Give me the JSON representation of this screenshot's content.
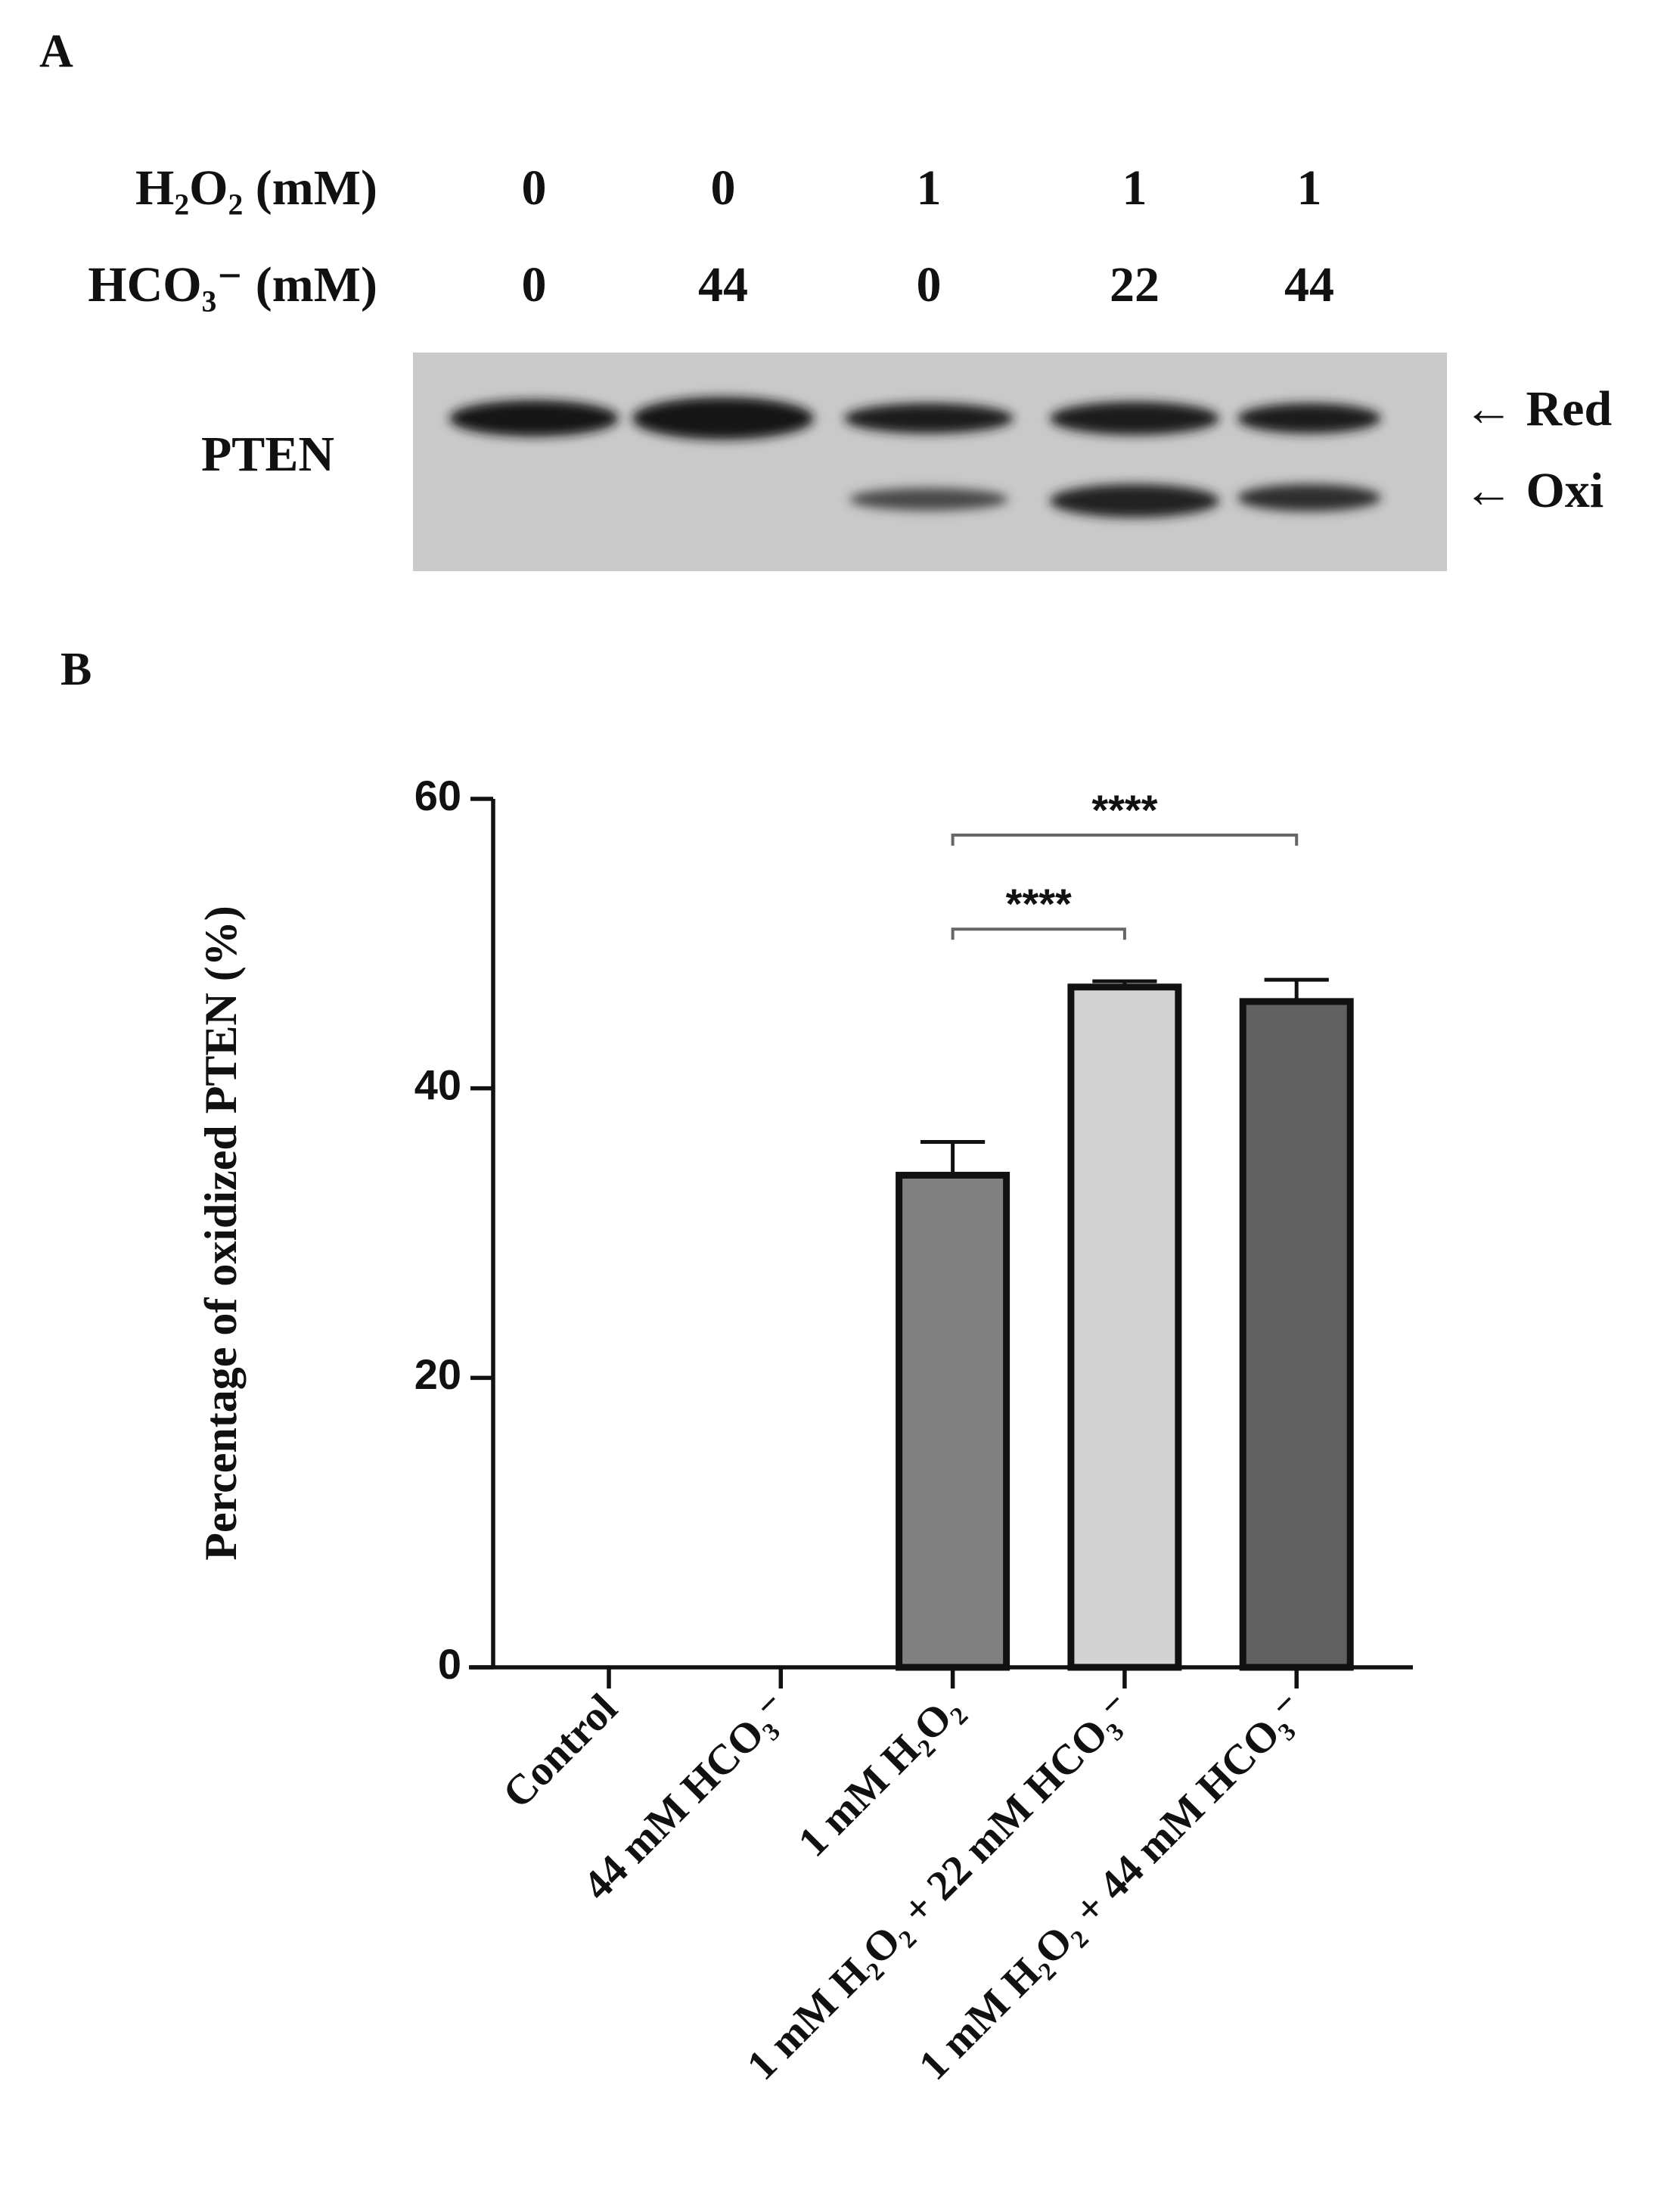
{
  "panel_a": {
    "label": "A",
    "rows": [
      {
        "label": "H₂O₂ (mM)",
        "values": [
          0,
          0,
          1,
          1,
          1
        ]
      },
      {
        "label": "HCO₃⁻ (mM)",
        "values": [
          0,
          44,
          0,
          22,
          44
        ]
      }
    ],
    "protein": "PTEN",
    "bands": [
      "← Red",
      "← Oxi"
    ]
  },
  "panel_b": {
    "label": "B"
  },
  "chart_data": {
    "type": "bar",
    "ylabel": "Percentage of oxidized PTEN (%)",
    "categories": [
      "Control",
      "44 mM HCO₃⁻",
      "1 mM H₂O₂",
      "1 mM H₂O₂ + 22 mM HCO₃⁻",
      "1 mM H₂O₂ + 44 mM HCO₃⁻"
    ],
    "values": [
      0,
      0,
      34,
      47,
      46
    ],
    "errors": [
      null,
      null,
      2.3,
      0.4,
      1.5
    ],
    "colors": [
      "#808080",
      "#808080",
      "#808080",
      "#d3d3d3",
      "#606060"
    ],
    "ylim": [
      0,
      60
    ],
    "yticks": [
      0,
      20,
      40,
      60
    ],
    "annotations": [
      {
        "text": "****",
        "from": 2,
        "to": 3,
        "y": 51
      },
      {
        "text": "****",
        "from": 2,
        "to": 4,
        "y": 57.5
      }
    ]
  }
}
